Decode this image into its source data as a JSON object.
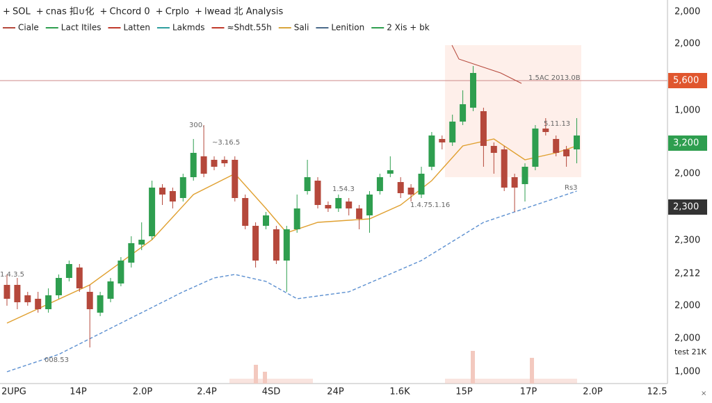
{
  "chart_data": {
    "type": "candlestick",
    "legend_top": [
      {
        "label": "SOL",
        "color": "#555"
      },
      {
        "label": "cnas 扣∪化",
        "color": "#b5483b"
      },
      {
        "label": "Chcord 0",
        "color": "#555"
      },
      {
        "label": "Crplo",
        "color": "#4a6a8a"
      },
      {
        "label": "lwead 北 Analysis",
        "color": "#4a6a8a"
      }
    ],
    "legend_second": [
      {
        "label": "Ciale",
        "color": "#b5483b"
      },
      {
        "label": "Lact Itiles",
        "color": "#2e9e4f"
      },
      {
        "label": "Latten",
        "color": "#c0392b"
      },
      {
        "label": "Lakmds",
        "color": "#2e9e9e"
      },
      {
        "label": "≈Shdt.55h",
        "color": "#c0392b"
      },
      {
        "label": "Sali",
        "color": "#d9a53b"
      },
      {
        "label": "Lenition",
        "color": "#4a6a8a"
      },
      {
        "label": "2 Xis + bk",
        "color": "#2e9e4f"
      }
    ],
    "price_scale_labels": [
      "2,000",
      "2,000",
      "1,000",
      "2,000",
      "2,300",
      "2,212",
      "2,000",
      "2,000",
      "test 21K",
      "1,000"
    ],
    "price_tags": [
      {
        "label": "5,600",
        "color": "#e0562e"
      },
      {
        "label": "3,200",
        "color": "#2e9e4f"
      },
      {
        "label": "2,300",
        "color": "#333"
      }
    ],
    "x_labels": [
      "2UPG",
      "14P",
      "2.0P",
      "2.4P",
      "4SD",
      "24P",
      "1.6K",
      "15P",
      "17P",
      "2.0P",
      "12.5"
    ],
    "annotations": [
      "300.",
      "~3.16.5",
      "1.4.3.5",
      "1.54.3",
      "1.4.75.1.16",
      "5.11.13",
      "1.5AC 2013.0B",
      "Rs3",
      "008.53"
    ],
    "close_label": "×",
    "ylim": [
      0,
      560
    ],
    "up_color": "#2e9e4f",
    "down_color": "#b5483b",
    "open": [
      150,
      150,
      135,
      130,
      115,
      135,
      160,
      175,
      140,
      110,
      130,
      152,
      182,
      208,
      220,
      290,
      285,
      275,
      305,
      335,
      330,
      330,
      330,
      275,
      235,
      235,
      230,
      185,
      230,
      285,
      300,
      265,
      260,
      270,
      260,
      250,
      285,
      310,
      298,
      290,
      280,
      320,
      360,
      355,
      385,
      405,
      400,
      350,
      345,
      305,
      295,
      320,
      375,
      360,
      345,
      345
    ],
    "high": [
      165,
      160,
      140,
      140,
      145,
      165,
      185,
      180,
      150,
      140,
      160,
      190,
      220,
      240,
      300,
      295,
      290,
      310,
      360,
      380,
      335,
      335,
      335,
      280,
      240,
      255,
      235,
      235,
      280,
      330,
      305,
      270,
      280,
      275,
      265,
      285,
      310,
      335,
      305,
      295,
      320,
      370,
      365,
      395,
      430,
      465,
      405,
      355,
      350,
      310,
      325,
      380,
      390,
      365,
      350,
      390
    ],
    "low": [
      120,
      115,
      120,
      110,
      110,
      130,
      155,
      140,
      60,
      105,
      125,
      148,
      175,
      200,
      215,
      265,
      260,
      270,
      300,
      305,
      315,
      320,
      270,
      230,
      175,
      230,
      180,
      140,
      225,
      280,
      260,
      255,
      255,
      250,
      230,
      225,
      280,
      305,
      275,
      270,
      275,
      315,
      345,
      350,
      380,
      400,
      320,
      310,
      285,
      255,
      270,
      315,
      365,
      335,
      320,
      325
    ],
    "close": [
      130,
      125,
      125,
      115,
      135,
      160,
      180,
      145,
      115,
      135,
      155,
      185,
      210,
      215,
      290,
      280,
      270,
      305,
      340,
      310,
      320,
      325,
      275,
      235,
      185,
      250,
      185,
      230,
      260,
      305,
      265,
      260,
      275,
      260,
      245,
      280,
      305,
      315,
      282,
      280,
      310,
      365,
      355,
      385,
      410,
      455,
      350,
      340,
      290,
      290,
      320,
      375,
      370,
      340,
      335,
      365
    ],
    "overlays": [
      {
        "color": "#e0a030",
        "dashed": false,
        "x": [
          0,
          8,
          14,
          18,
          22,
          25,
          27,
          30,
          35,
          38,
          41,
          44,
          47,
          50,
          53,
          55
        ],
        "values": [
          95,
          150,
          215,
          280,
          310,
          260,
          225,
          240,
          245,
          265,
          300,
          350,
          360,
          330,
          340,
          350
        ]
      },
      {
        "color": "#5b8fd0",
        "dashed": true,
        "x": [
          0,
          5,
          11,
          17,
          20,
          22,
          25,
          28,
          33,
          40,
          46,
          52,
          55
        ],
        "values": [
          25,
          50,
          95,
          140,
          160,
          165,
          155,
          130,
          140,
          185,
          240,
          270,
          285
        ]
      }
    ]
  }
}
